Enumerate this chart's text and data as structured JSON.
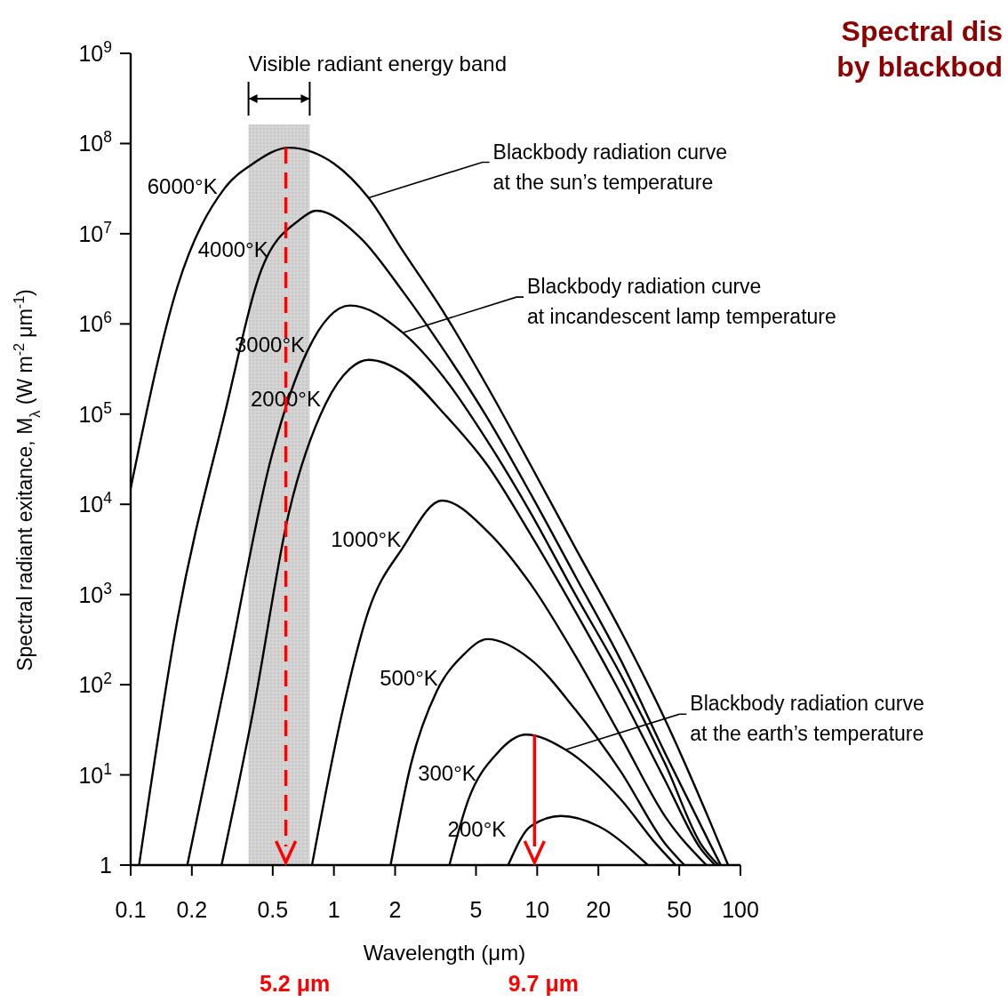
{
  "chart_data": {
    "type": "line",
    "title": "Spectral dis",
    "subtitle": "by blackbod",
    "xlabel": "Wavelength (μm)",
    "ylabel": "Spectral radiant exitance, M$_{λ}$ (W m$^{-2}$ μm$^{-1}$)",
    "log": "xy",
    "grid": false,
    "marker": "none",
    "line_style": "solid",
    "xlim": [
      0.1,
      100
    ],
    "xticks": [
      0.1,
      0.2,
      0.5,
      1,
      2,
      5,
      10,
      20,
      50,
      100
    ],
    "ylim": [
      1,
      1000000000
    ],
    "yticks": [
      1,
      {
        "value": 10,
        "label": "10$^{1}$"
      },
      {
        "value": 100,
        "label": "10$^{2}$"
      },
      {
        "value": 1000,
        "label": "10$^{3}$"
      },
      {
        "value": 10000,
        "label": "10$^{4}$"
      },
      {
        "value": 100000,
        "label": "10$^{5}$"
      },
      {
        "value": 1000000,
        "label": "10$^{6}$"
      },
      {
        "value": 10000000,
        "label": "10$^{7}$"
      },
      {
        "value": 100000000,
        "label": "10$^{8}$"
      },
      {
        "value": 1000000000,
        "label": "10$^{9}$"
      }
    ],
    "series": [
      {
        "name": "6000°K",
        "color": "#000000",
        "x": [
          0.1,
          0.17,
          0.29,
          0.4,
          0.6,
          1,
          1.48,
          2.18,
          3.5,
          5.7,
          9.3,
          15.4,
          25.7,
          42.8,
          71,
          87
        ],
        "values": [
          15000,
          2600000,
          32000000,
          60000000,
          90000000,
          60000000,
          25000000,
          6500000,
          1300000,
          200000,
          27000,
          3300,
          400,
          40,
          3,
          1
        ]
      },
      {
        "name": "4000°K",
        "color": "#000000",
        "x": [
          0.11,
          0.17,
          0.29,
          0.44,
          0.67,
          0.82,
          1.35,
          2.18,
          3.5,
          5.7,
          9.3,
          15.4,
          25.7,
          42.8,
          71,
          80
        ],
        "values": [
          1,
          530,
          100000,
          4000000,
          14000000,
          18000000,
          9000000,
          2300000,
          500000,
          90000,
          13000,
          1600,
          190,
          17,
          1.7,
          1
        ]
      },
      {
        "name": "3000°K",
        "color": "#000000",
        "x": [
          0.19,
          0.29,
          0.49,
          0.74,
          1.2,
          2.18,
          3.5,
          5.7,
          9.3,
          15.4,
          25.7,
          42.8,
          64,
          78
        ],
        "values": [
          1,
          100,
          32000,
          500000,
          1600000,
          800000,
          250000,
          50000,
          8000,
          1000,
          130,
          13,
          1.7,
          1
        ]
      },
      {
        "name": "2000°K",
        "color": "#000000",
        "x": [
          0.28,
          0.4,
          0.6,
          0.91,
          1.2,
          1.48,
          2.18,
          3.5,
          5.7,
          9.3,
          15.4,
          25.7,
          42.8,
          64,
          75
        ],
        "values": [
          1,
          50,
          8000,
          130000,
          320000,
          400000,
          290000,
          100000,
          27000,
          4600,
          650,
          80,
          8.5,
          1.5,
          1
        ]
      },
      {
        "name": "1000°K",
        "color": "#000000",
        "x": [
          0.78,
          1.1,
          1.48,
          2.18,
          3.4,
          5.7,
          9.3,
          15.4,
          25.7,
          42.8,
          68
        ],
        "values": [
          1,
          50,
          660,
          3300,
          11000,
          5000,
          1300,
          210,
          27,
          3.4,
          1
        ]
      },
      {
        "name": "500°K",
        "color": "#000000",
        "x": [
          1.9,
          2.4,
          3.2,
          4.3,
          5.7,
          9.3,
          15.4,
          25.7,
          42.8,
          53
        ],
        "values": [
          1,
          13.5,
          84,
          210,
          320,
          190,
          53,
          11,
          1.7,
          1
        ]
      },
      {
        "name": "300°K",
        "color": "#000000",
        "x": [
          3.7,
          4.6,
          6.3,
          8.8,
          13.8,
          25.7,
          38.6,
          48
        ],
        "values": [
          1,
          5.4,
          17,
          28,
          19,
          5.4,
          1.7,
          1
        ]
      },
      {
        "name": "200°K",
        "color": "#000000",
        "x": [
          7.2,
          9.3,
          13.1,
          20,
          35
        ],
        "values": [
          1,
          2.7,
          3.5,
          2.7,
          1
        ]
      }
    ],
    "bands": [
      {
        "axis": "x",
        "from": 0.38,
        "to": 0.76,
        "label": "Visible radiant energy band",
        "color": "#d4d4d4"
      }
    ],
    "ref_lines": [
      {
        "axis": "x",
        "value": 0.58,
        "label": "5.2 μm",
        "color": "#ff0000",
        "line_style": "dashed"
      },
      {
        "axis": "x",
        "value": 9.7,
        "label": "9.7 μm",
        "color": "#ff0000",
        "line_style": "solid"
      }
    ],
    "annotations": [
      {
        "text": "Blackbody radiation curve\nat the sun’s temperature",
        "x": 1.48,
        "y": 25000000
      },
      {
        "text": "Blackbody radiation curve\nat incandescent lamp temperature",
        "x": 2.18,
        "y": 800000
      },
      {
        "text": "Blackbody radiation curve\nat the earth’s temperature",
        "x": 13.8,
        "y": 19
      }
    ]
  }
}
